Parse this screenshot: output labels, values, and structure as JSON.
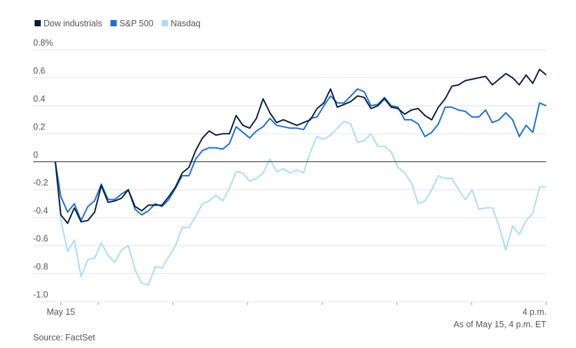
{
  "chart_data": {
    "type": "line",
    "categories": [
      null,
      "May 15",
      null,
      null,
      null,
      null,
      null,
      null,
      null,
      null,
      null,
      null,
      null,
      null,
      null,
      null,
      null,
      null,
      null,
      null,
      null,
      null,
      null,
      null,
      null,
      null,
      null,
      null,
      null,
      null,
      null,
      null,
      null,
      null,
      null,
      null,
      null,
      null,
      null,
      null,
      null,
      null,
      null,
      null,
      null,
      null,
      null,
      null,
      null,
      null,
      null,
      null,
      null,
      null,
      null,
      null,
      null,
      null,
      null,
      null,
      null,
      null,
      null,
      null,
      null,
      null,
      null,
      null,
      null,
      null,
      null,
      null,
      null,
      "4 p.m."
    ],
    "series": [
      {
        "name": "Dow industrials",
        "color": "#0b1f3f",
        "values": [
          0,
          -0.38,
          -0.44,
          -0.33,
          -0.43,
          -0.42,
          -0.36,
          -0.17,
          -0.29,
          -0.28,
          -0.26,
          -0.2,
          -0.32,
          -0.35,
          -0.31,
          -0.31,
          -0.31,
          -0.25,
          -0.18,
          -0.08,
          -0.04,
          0.08,
          0.17,
          0.22,
          0.19,
          0.2,
          0.2,
          0.33,
          0.26,
          0.24,
          0.31,
          0.45,
          0.35,
          0.28,
          0.3,
          0.28,
          0.26,
          0.28,
          0.3,
          0.38,
          0.42,
          0.52,
          0.39,
          0.41,
          0.43,
          0.47,
          0.46,
          0.38,
          0.4,
          0.45,
          0.39,
          0.38,
          0.34,
          0.37,
          0.38,
          0.33,
          0.3,
          0.39,
          0.45,
          0.54,
          0.55,
          0.58,
          0.59,
          0.6,
          0.61,
          0.55,
          0.59,
          0.63,
          0.6,
          0.55,
          0.62,
          0.56,
          0.66,
          0.62
        ]
      },
      {
        "name": "S&P 500",
        "color": "#1a6fd6",
        "values": [
          0,
          -0.25,
          -0.36,
          -0.3,
          -0.42,
          -0.32,
          -0.28,
          -0.16,
          -0.27,
          -0.27,
          -0.23,
          -0.2,
          -0.34,
          -0.38,
          -0.35,
          -0.3,
          -0.32,
          -0.27,
          -0.19,
          -0.1,
          -0.1,
          0.02,
          0.08,
          0.1,
          0.1,
          0.09,
          0.13,
          0.25,
          0.21,
          0.17,
          0.22,
          0.25,
          0.31,
          0.26,
          0.25,
          0.24,
          0.24,
          0.23,
          0.31,
          0.32,
          0.4,
          0.47,
          0.42,
          0.42,
          0.47,
          0.52,
          0.5,
          0.4,
          0.41,
          0.46,
          0.4,
          0.39,
          0.3,
          0.3,
          0.27,
          0.18,
          0.21,
          0.27,
          0.39,
          0.39,
          0.37,
          0.36,
          0.32,
          0.32,
          0.37,
          0.28,
          0.3,
          0.35,
          0.3,
          0.18,
          0.26,
          0.21,
          0.42,
          0.4
        ]
      },
      {
        "name": "Nasdaq",
        "color": "#a8def5",
        "values": [
          0,
          -0.42,
          -0.64,
          -0.56,
          -0.82,
          -0.7,
          -0.69,
          -0.58,
          -0.67,
          -0.72,
          -0.63,
          -0.6,
          -0.77,
          -0.87,
          -0.88,
          -0.75,
          -0.76,
          -0.68,
          -0.6,
          -0.47,
          -0.47,
          -0.39,
          -0.3,
          -0.28,
          -0.24,
          -0.28,
          -0.19,
          -0.07,
          -0.08,
          -0.14,
          -0.12,
          -0.08,
          0.02,
          -0.07,
          -0.05,
          -0.08,
          -0.06,
          -0.08,
          0.07,
          0.18,
          0.16,
          0.19,
          0.24,
          0.29,
          0.27,
          0.14,
          0.15,
          0.2,
          0.11,
          0.11,
          0.07,
          -0.04,
          -0.08,
          -0.15,
          -0.3,
          -0.28,
          -0.2,
          -0.1,
          -0.12,
          -0.12,
          -0.2,
          -0.27,
          -0.2,
          -0.34,
          -0.33,
          -0.33,
          -0.46,
          -0.63,
          -0.46,
          -0.52,
          -0.42,
          -0.37,
          -0.18,
          -0.18
        ]
      }
    ],
    "ylim": [
      -1.0,
      0.8
    ],
    "yticks": [
      {
        "value": 0.8,
        "label": "0.8%"
      },
      0.6,
      0.4,
      0.2,
      0,
      -0.2,
      -0.4,
      -0.6,
      -0.8,
      {
        "value": -1.0,
        "label": "-1.0"
      }
    ],
    "grid": true,
    "legend": "top",
    "note": "As of May 15, 4 p.m. ET",
    "source": "Source: FactSet"
  }
}
